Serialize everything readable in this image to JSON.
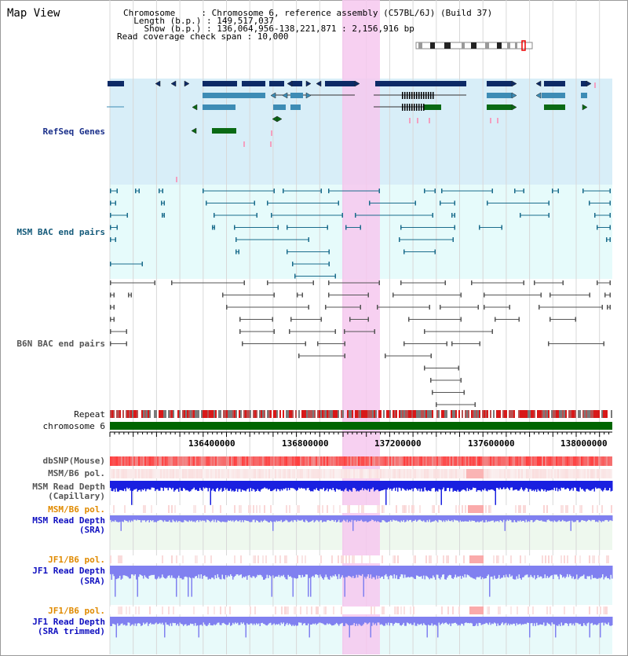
{
  "header": {
    "title": "Map View",
    "info_lines": [
      "Chromosome     : Chromosome 6, reference assembly (C57BL/6J) (Build 37)",
      "  Length (b.p.) : 149,517,037",
      "    Show (b.p.) : 136,064,956-138,221,871 : 2,156,916 bp",
      "Read coverage check span : 10,000"
    ]
  },
  "tracks": {
    "refseq": "RefSeq Genes",
    "msm_bac": "MSM BAC end pairs",
    "b6n_bac": "B6N BAC end pairs",
    "repeat": "Repeat",
    "chromosome": "chromosome 6",
    "dbsnp": "dbSNP(Mouse)",
    "msm_b6_pol": "MSM/B6 pol.",
    "msm_depth_cap_1": "MSM Read Depth",
    "msm_depth_cap_2": "(Capillary)",
    "msm_b6_pol_sra": "MSM/B6 pol.",
    "msm_depth_sra_1": "MSM Read Depth",
    "msm_depth_sra_2": "(SRA)",
    "jf1_b6_pol": "JF1/B6 pol.",
    "jf1_depth_1": "JF1 Read Depth",
    "jf1_depth_2": "(SRA)",
    "jf1_b6_pol_trim": "JF1/B6 pol.",
    "jf1_trim_1": "JF1 Read Depth",
    "jf1_trim_2": "(SRA trimmed)"
  },
  "ruler": {
    "ticks": [
      "136400000",
      "136800000",
      "137200000",
      "137600000",
      "138000000"
    ]
  },
  "colors": {
    "refseq_bg": "#d8eef8",
    "msm_bg": "#e6fbfb",
    "highlight": "#f6c8ef",
    "chrom_green": "#006600",
    "gene_dark": "#0d2a66",
    "gene_mid": "#3d8cb5",
    "gene_green": "#0a6a14",
    "msm_line": "#1b6c8c",
    "b6n_line": "#555555",
    "depth_blue": "#1a20e0",
    "depth_light": "#8080f0"
  }
}
